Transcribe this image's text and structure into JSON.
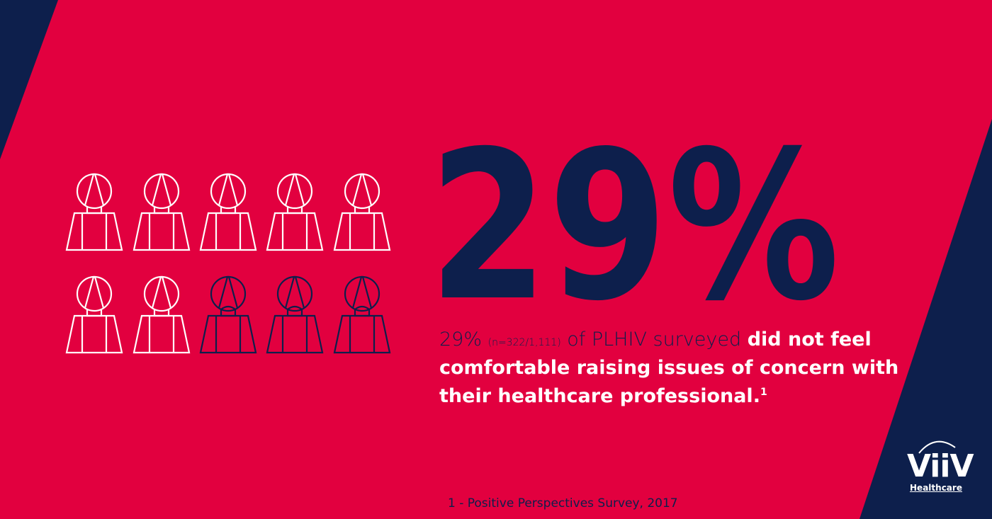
{
  "headline": "29%",
  "statement": {
    "figure": "29%",
    "sample": "(n=322/1,111)",
    "lead": "of PLHIV surveyed",
    "emphasis": "did not feel comfortable raising issues of concern with their healthcare professional.",
    "reference": "1"
  },
  "footnote": "1 - Positive Perspectives Survey, 2017",
  "logo": {
    "name": "ViiV",
    "tagline": "Healthcare"
  }
}
